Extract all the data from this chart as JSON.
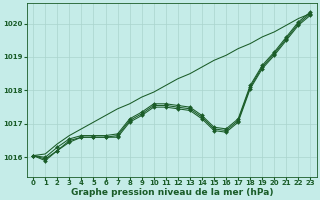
{
  "background_color": "#c5ece8",
  "grid_color": "#aad4ce",
  "line_color": "#1a5c28",
  "xlabel": "Graphe pression niveau de la mer (hPa)",
  "xlabel_fontsize": 6.5,
  "xlim": [
    -0.5,
    23.5
  ],
  "ylim": [
    1015.4,
    1020.6
  ],
  "yticks": [
    1016,
    1017,
    1018,
    1019,
    1020
  ],
  "xticks": [
    0,
    1,
    2,
    3,
    4,
    5,
    6,
    7,
    8,
    9,
    10,
    11,
    12,
    13,
    14,
    15,
    16,
    17,
    18,
    19,
    20,
    21,
    22,
    23
  ],
  "series_with_markers": [
    [
      1016.05,
      1015.95,
      1016.2,
      1016.5,
      1016.6,
      1016.6,
      1016.6,
      1016.65,
      1017.1,
      1017.3,
      1017.55,
      1017.55,
      1017.5,
      1017.45,
      1017.2,
      1016.85,
      1016.8,
      1017.1,
      1018.1,
      1018.7,
      1019.1,
      1019.55,
      1020.0,
      1020.3
    ],
    [
      1016.05,
      1015.9,
      1016.2,
      1016.45,
      1016.6,
      1016.6,
      1016.6,
      1016.6,
      1017.05,
      1017.25,
      1017.5,
      1017.5,
      1017.45,
      1017.4,
      1017.15,
      1016.8,
      1016.75,
      1017.05,
      1018.05,
      1018.65,
      1019.05,
      1019.5,
      1019.95,
      1020.25
    ],
    [
      1016.05,
      1016.0,
      1016.3,
      1016.55,
      1016.65,
      1016.65,
      1016.65,
      1016.7,
      1017.15,
      1017.35,
      1017.6,
      1017.6,
      1017.55,
      1017.5,
      1017.25,
      1016.9,
      1016.85,
      1017.15,
      1018.15,
      1018.75,
      1019.15,
      1019.6,
      1020.05,
      1020.35
    ]
  ],
  "series_no_marker": [
    1016.05,
    1016.1,
    1016.4,
    1016.65,
    1016.85,
    1017.05,
    1017.25,
    1017.45,
    1017.6,
    1017.8,
    1017.95,
    1018.15,
    1018.35,
    1018.5,
    1018.7,
    1018.9,
    1019.05,
    1019.25,
    1019.4,
    1019.6,
    1019.75,
    1019.95,
    1020.15,
    1020.3
  ],
  "marker": "D",
  "marker_size": 2.0,
  "line_width": 0.75,
  "tick_fontsize": 5,
  "tick_color": "#1a5c28"
}
